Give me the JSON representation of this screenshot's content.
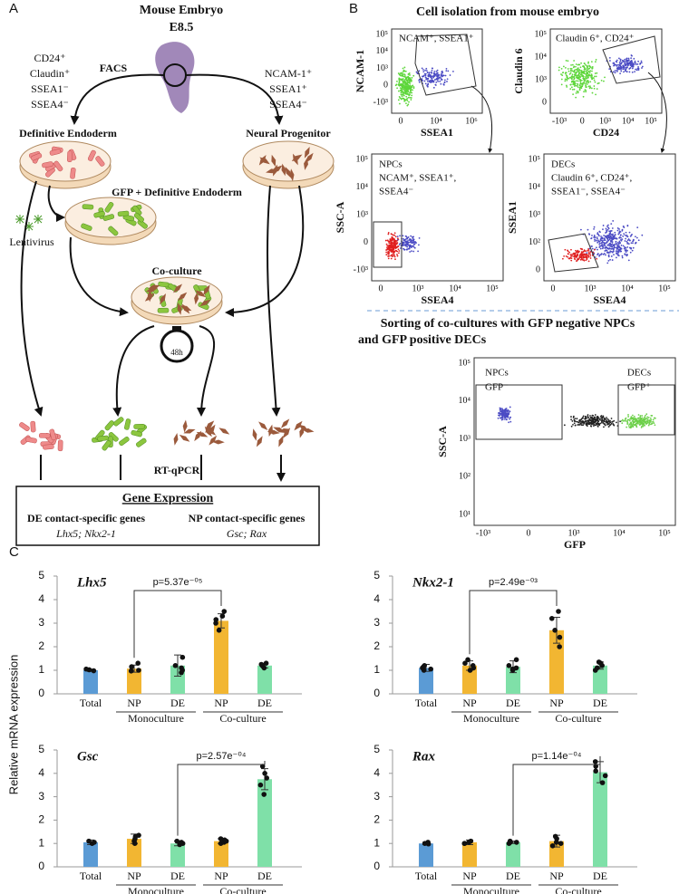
{
  "panel_labels": [
    "A",
    "B",
    "C"
  ],
  "diagram": {
    "embryo_title": "Mouse Embryo",
    "embryo_stage": "E8.5",
    "facs": "FACS",
    "left_markers": [
      "CD24⁺",
      "Claudin⁺",
      "SSEA1⁻",
      "SSEA4⁻"
    ],
    "right_markers": [
      "NCAM-1⁺",
      "SSEA1⁺",
      "SSEA4⁻"
    ],
    "definitive_endoderm": "Definitive Endoderm",
    "neural_progenitor": "Neural Progenitor",
    "gfp_de": "GFP + Definitive Endoderm",
    "lentivirus": "Lentivirus",
    "coculture": "Co-culture",
    "timer": "48h",
    "rtqpcr": "RT-qPCR",
    "gene_expression": {
      "title": "Gene Expression",
      "de_heading": "DE contact-specific genes",
      "np_heading": "NP contact-specific genes",
      "de_genes": "Lhx5; Nkx2-1",
      "np_genes": "Gsc; Rax"
    }
  },
  "flow": {
    "isolation_title": "Cell isolation from mouse embryo",
    "sorting_title": [
      "Sorting of co-cultures with GFP negative NPCs",
      "and GFP positive DECs"
    ],
    "plots": [
      {
        "x_label": "SSEA1",
        "y_label": "NCAM-1",
        "x_ticks": [
          "0",
          "10⁴",
          "10⁶"
        ],
        "y_ticks": [
          "10⁵",
          "10⁴",
          "10³",
          "0",
          "-10³"
        ],
        "gate_labels": [
          "NCAM⁺, SSEA1⁺"
        ]
      },
      {
        "x_label": "CD24",
        "y_label": "Claudin 6",
        "x_ticks": [
          "-10³",
          "0",
          "10³",
          "10⁴",
          "10⁵"
        ],
        "y_ticks": [
          "10⁵",
          "10⁴",
          "10³",
          "0"
        ],
        "gate_labels": [
          "Claudin 6⁺, CD24⁺"
        ]
      },
      {
        "x_label": "SSEA4",
        "y_label": "SSC-A",
        "x_ticks": [
          "0",
          "10³",
          "10⁴",
          "10⁵"
        ],
        "y_ticks": [
          "10⁵",
          "10⁴",
          "10³",
          "0",
          "-10³"
        ],
        "gate_labels": [
          "NPCs",
          "NCAM⁺, SSEA1⁺,",
          "SSEA4⁻"
        ]
      },
      {
        "x_label": "SSEA4",
        "y_label": "SSEA1",
        "x_ticks": [
          "0",
          "10³",
          "10⁴",
          "10⁵"
        ],
        "y_ticks": [
          "10⁵",
          "10⁴",
          "10³",
          "10²",
          "0"
        ],
        "gate_labels": [
          "DECs",
          "Claudin 6⁺, CD24⁺,",
          "SSEA1⁻, SSEA4⁻"
        ]
      },
      {
        "x_label": "GFP",
        "y_label": "SSC-A",
        "x_ticks": [
          "-10³",
          "0",
          "10³",
          "10⁴",
          "10⁵"
        ],
        "y_ticks": [
          "10⁵",
          "10⁴",
          "10³",
          "10²",
          "10¹"
        ],
        "gate_labels": [
          "NPCs",
          "GFP⁻",
          "DECs",
          "GFP⁺"
        ]
      }
    ]
  },
  "shared_y_label": "Relative mRNA expression",
  "chart_data": [
    {
      "type": "bar",
      "title": "Lhx5",
      "categories": [
        "Total",
        "NP",
        "DE",
        "NP",
        "DE"
      ],
      "groups": [
        "Monoculture",
        "Co-culture"
      ],
      "values": [
        1.0,
        1.07,
        1.2,
        3.1,
        1.2
      ],
      "errors": [
        0.05,
        0.15,
        0.45,
        0.3,
        0.1
      ],
      "points": [
        [
          0.98,
          1.02,
          1.05
        ],
        [
          0.97,
          1.0,
          1.15,
          1.3
        ],
        [
          0.9,
          1.0,
          1.1,
          1.2,
          1.55
        ],
        [
          2.7,
          3.0,
          3.15,
          3.3,
          3.5
        ],
        [
          1.1,
          1.2,
          1.25,
          1.3
        ]
      ],
      "colors": [
        "#5b9bd5",
        "#f2b632",
        "#7fe0a8",
        "#f2b632",
        "#7fe0a8"
      ],
      "ylim": [
        0,
        5
      ],
      "yticks": [
        0,
        1,
        2,
        3,
        4,
        5
      ],
      "p_value": "p=5.37e⁻⁰⁵"
    },
    {
      "type": "bar",
      "title": "Nkx2-1",
      "categories": [
        "Total",
        "NP",
        "DE",
        "NP",
        "DE"
      ],
      "groups": [
        "Monoculture",
        "Co-culture"
      ],
      "values": [
        1.1,
        1.2,
        1.15,
        2.7,
        1.2
      ],
      "errors": [
        0.15,
        0.2,
        0.25,
        0.55,
        0.15
      ],
      "points": [
        [
          1.0,
          1.05,
          1.1,
          1.15,
          1.2
        ],
        [
          1.0,
          1.1,
          1.2,
          1.3,
          1.45
        ],
        [
          1.0,
          1.05,
          1.1,
          1.2,
          1.45
        ],
        [
          2.0,
          2.4,
          2.7,
          3.2,
          3.5
        ],
        [
          1.0,
          1.1,
          1.2,
          1.3,
          1.35
        ]
      ],
      "colors": [
        "#5b9bd5",
        "#f2b632",
        "#7fe0a8",
        "#f2b632",
        "#7fe0a8"
      ],
      "ylim": [
        0,
        5
      ],
      "yticks": [
        0,
        1,
        2,
        3,
        4,
        5
      ],
      "p_value": "p=2.49e⁻⁰³"
    },
    {
      "type": "bar",
      "title": "Gsc",
      "categories": [
        "Total",
        "NP",
        "DE",
        "NP",
        "DE"
      ],
      "groups": [
        "Monoculture",
        "Co-culture"
      ],
      "values": [
        1.05,
        1.2,
        1.0,
        1.1,
        3.75
      ],
      "errors": [
        0.1,
        0.2,
        0.1,
        0.1,
        0.45
      ],
      "points": [
        [
          1.0,
          1.05,
          1.1
        ],
        [
          1.0,
          1.1,
          1.2,
          1.3,
          1.35
        ],
        [
          0.95,
          1.0,
          1.05,
          1.1
        ],
        [
          1.0,
          1.05,
          1.1,
          1.15,
          1.2
        ],
        [
          3.1,
          3.5,
          3.8,
          4.0,
          4.3
        ]
      ],
      "colors": [
        "#5b9bd5",
        "#f2b632",
        "#7fe0a8",
        "#f2b632",
        "#7fe0a8"
      ],
      "ylim": [
        0,
        5
      ],
      "yticks": [
        0,
        1,
        2,
        3,
        4,
        5
      ],
      "p_value": "p=2.57e⁻⁰⁴"
    },
    {
      "type": "bar",
      "title": "Rax",
      "categories": [
        "Total",
        "NP",
        "DE",
        "NP",
        "DE"
      ],
      "groups": [
        "Monoculture",
        "Co-culture"
      ],
      "values": [
        1.0,
        1.05,
        1.05,
        1.1,
        4.05
      ],
      "errors": [
        0.05,
        0.1,
        0.05,
        0.25,
        0.45
      ],
      "points": [
        [
          0.98,
          1.0,
          1.05
        ],
        [
          1.0,
          1.0,
          1.05,
          1.1
        ],
        [
          1.0,
          1.05,
          1.05,
          1.1
        ],
        [
          0.9,
          1.0,
          1.05,
          1.2,
          1.3
        ],
        [
          3.6,
          3.9,
          4.1,
          4.3,
          4.5
        ]
      ],
      "colors": [
        "#5b9bd5",
        "#f2b632",
        "#7fe0a8",
        "#f2b632",
        "#7fe0a8"
      ],
      "ylim": [
        0,
        5
      ],
      "yticks": [
        0,
        1,
        2,
        3,
        4,
        5
      ],
      "p_value": "p=1.14e⁻⁰⁴"
    }
  ]
}
